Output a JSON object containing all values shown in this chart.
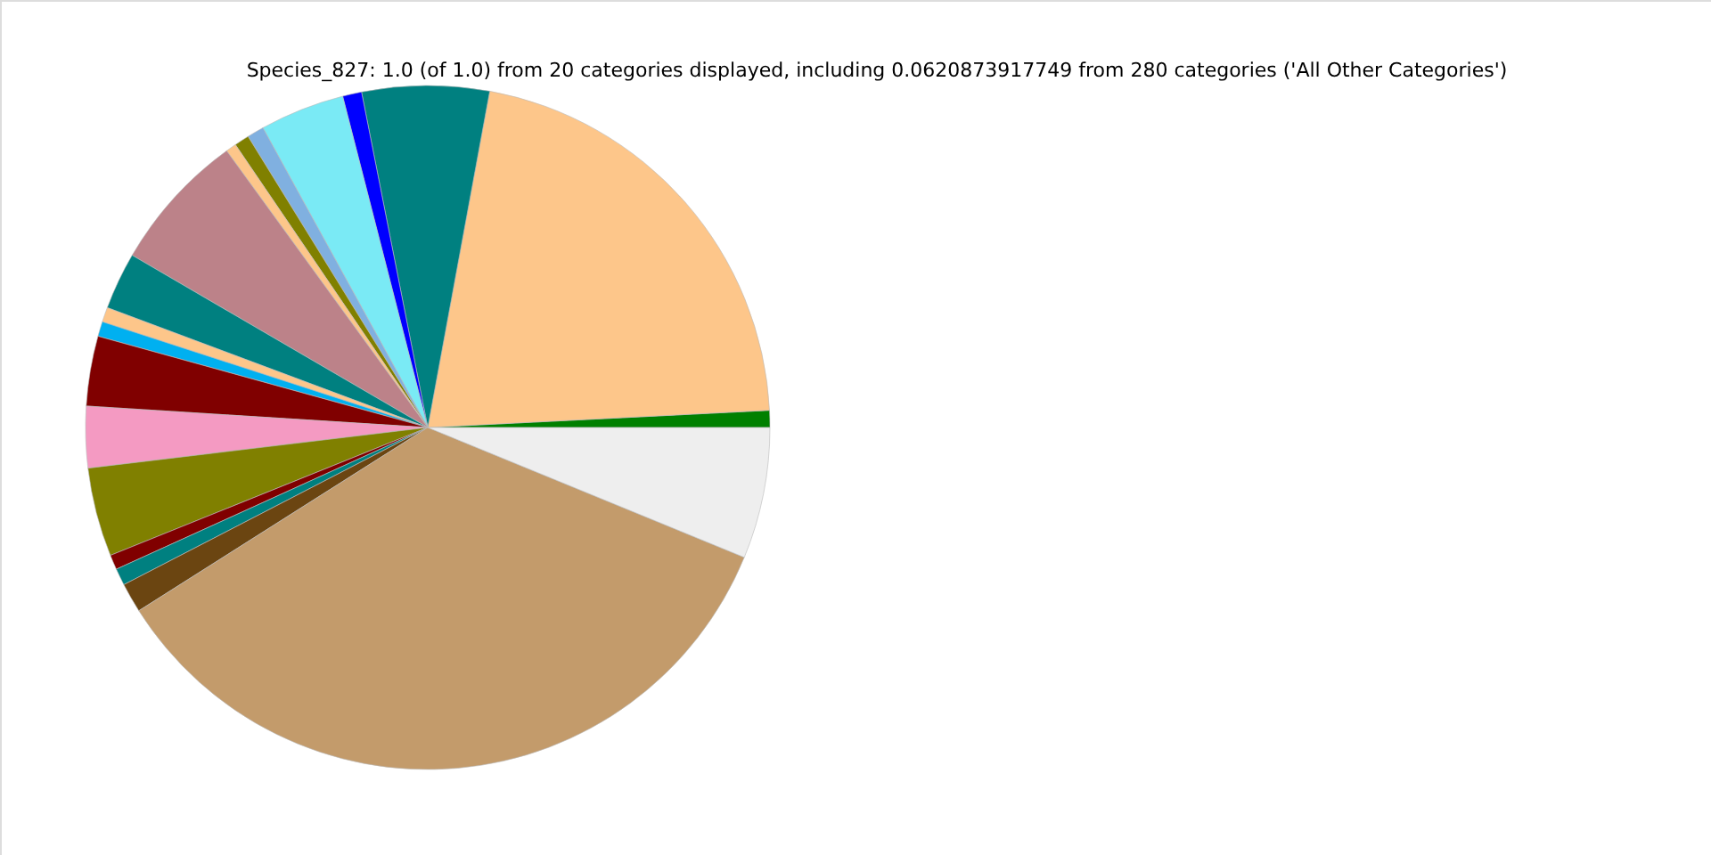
{
  "chart_data": {
    "type": "pie",
    "title": "Species_827: 1.0 (of 1.0) from 20 categories displayed, including 0.0620873917749 from 280 categories ('All Other Categories')",
    "categories": [
      null,
      null,
      null,
      null,
      null,
      null,
      null,
      null,
      null,
      null,
      null,
      null,
      null,
      null,
      null,
      null,
      null,
      null,
      null,
      null
    ],
    "values": [
      0.8,
      21.3,
      6.0,
      0.9,
      4.0,
      0.8,
      0.7,
      0.5,
      6.6,
      2.7,
      0.7,
      0.7,
      3.3,
      2.9,
      4.2,
      0.7,
      0.8,
      1.4,
      34.8,
      6.2
    ],
    "colors": [
      "#008000",
      "#fdc68a",
      "#008080",
      "#0000ff",
      "#7aeaf5",
      "#80b0e0",
      "#808000",
      "#fdc68a",
      "#bc8289",
      "#008080",
      "#fdc68a",
      "#00b0f0",
      "#800000",
      "#f49ac2",
      "#808000",
      "#800000",
      "#008080",
      "#6b4511",
      "#c39b6b",
      "#eeeeee"
    ]
  }
}
